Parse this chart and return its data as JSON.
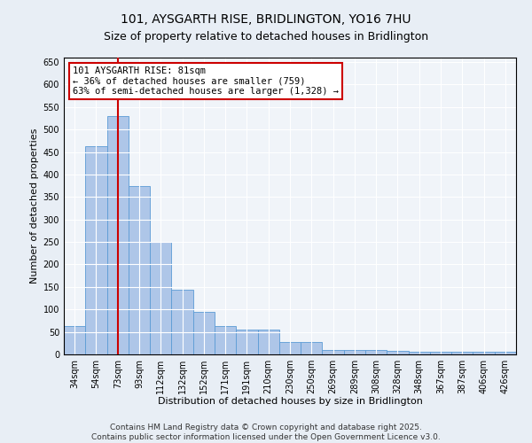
{
  "title": "101, AYSGARTH RISE, BRIDLINGTON, YO16 7HU",
  "subtitle": "Size of property relative to detached houses in Bridlington",
  "xlabel": "Distribution of detached houses by size in Bridlington",
  "ylabel": "Number of detached properties",
  "categories": [
    "34sqm",
    "54sqm",
    "73sqm",
    "93sqm",
    "112sqm",
    "132sqm",
    "152sqm",
    "171sqm",
    "191sqm",
    "210sqm",
    "230sqm",
    "250sqm",
    "269sqm",
    "289sqm",
    "308sqm",
    "328sqm",
    "348sqm",
    "367sqm",
    "387sqm",
    "406sqm",
    "426sqm"
  ],
  "values": [
    63,
    463,
    530,
    375,
    250,
    143,
    95,
    63,
    55,
    55,
    27,
    27,
    10,
    10,
    10,
    8,
    5,
    5,
    5,
    5,
    5
  ],
  "bar_color": "#aec6e8",
  "bar_edge_color": "#5b9bd5",
  "vline_x": 2.0,
  "vline_color": "#cc0000",
  "annotation_text": "101 AYSGARTH RISE: 81sqm\n← 36% of detached houses are smaller (759)\n63% of semi-detached houses are larger (1,328) →",
  "annotation_box_color": "#ffffff",
  "annotation_box_edge": "#cc0000",
  "ylim": [
    0,
    660
  ],
  "yticks": [
    0,
    50,
    100,
    150,
    200,
    250,
    300,
    350,
    400,
    450,
    500,
    550,
    600,
    650
  ],
  "footer1": "Contains HM Land Registry data © Crown copyright and database right 2025.",
  "footer2": "Contains public sector information licensed under the Open Government Licence v3.0.",
  "bg_color": "#e8eef5",
  "plot_bg_color": "#f0f4f9",
  "grid_color": "#ffffff",
  "title_fontsize": 10,
  "axis_label_fontsize": 8,
  "tick_fontsize": 7,
  "footer_fontsize": 6.5,
  "annot_fontsize": 7.5
}
